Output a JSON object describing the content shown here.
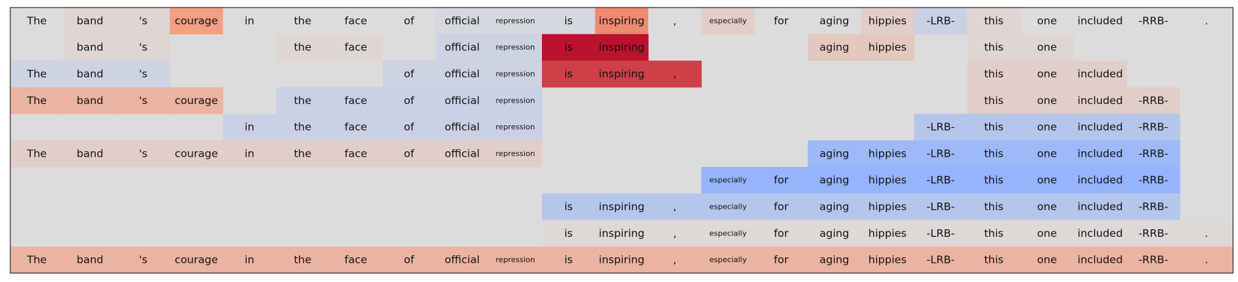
{
  "chart_data": {
    "type": "heatmap",
    "columns": [
      "The",
      "band",
      "'s",
      "courage",
      "in",
      "the",
      "face",
      "of",
      "official",
      "repression",
      "is",
      "inspiring",
      ",",
      "especially",
      "for",
      "aging",
      "hippies",
      "-LRB-",
      "this",
      "one",
      "included",
      "-RRB-",
      "."
    ],
    "small_tokens": [
      "repression",
      "especially"
    ],
    "rows": [
      {
        "cells": [
          {
            "c": 0,
            "v": 0.0
          },
          {
            "c": 1,
            "v": 0.05
          },
          {
            "c": 2,
            "v": 0.05
          },
          {
            "c": 3,
            "v": 0.45
          },
          {
            "c": 4,
            "v": 0.0
          },
          {
            "c": 5,
            "v": 0.0
          },
          {
            "c": 6,
            "v": 0.0
          },
          {
            "c": 7,
            "v": 0.0
          },
          {
            "c": 8,
            "v": -0.05
          },
          {
            "c": 9,
            "v": -0.05
          },
          {
            "c": 10,
            "v": -0.05
          },
          {
            "c": 11,
            "v": 0.55
          },
          {
            "c": 12,
            "v": 0.0
          },
          {
            "c": 13,
            "v": 0.1
          },
          {
            "c": 14,
            "v": 0.0
          },
          {
            "c": 15,
            "v": 0.0
          },
          {
            "c": 16,
            "v": 0.1
          },
          {
            "c": 17,
            "v": -0.12
          },
          {
            "c": 18,
            "v": 0.05
          },
          {
            "c": 19,
            "v": 0.0
          },
          {
            "c": 20,
            "v": 0.0
          },
          {
            "c": 21,
            "v": 0.0
          },
          {
            "c": 22,
            "v": 0.0
          }
        ]
      },
      {
        "cells": [
          {
            "c": 1,
            "v": 0.05
          },
          {
            "c": 2,
            "v": 0.05
          },
          {
            "c": 5,
            "v": 0.05
          },
          {
            "c": 6,
            "v": 0.05
          },
          {
            "c": 8,
            "v": -0.1
          },
          {
            "c": 9,
            "v": -0.1
          },
          {
            "c": 10,
            "v": 0.95
          },
          {
            "c": 11,
            "v": 0.95
          },
          {
            "c": 15,
            "v": 0.15
          },
          {
            "c": 16,
            "v": 0.15
          },
          {
            "c": 18,
            "v": 0.05
          },
          {
            "c": 19,
            "v": 0.05
          }
        ]
      },
      {
        "cells": [
          {
            "c": 0,
            "v": -0.1
          },
          {
            "c": 1,
            "v": -0.1
          },
          {
            "c": 2,
            "v": -0.1
          },
          {
            "c": 7,
            "v": -0.1
          },
          {
            "c": 8,
            "v": -0.1
          },
          {
            "c": 9,
            "v": -0.1
          },
          {
            "c": 10,
            "v": 0.8
          },
          {
            "c": 11,
            "v": 0.8
          },
          {
            "c": 12,
            "v": 0.8
          },
          {
            "c": 18,
            "v": 0.1
          },
          {
            "c": 19,
            "v": 0.1
          },
          {
            "c": 20,
            "v": 0.1
          }
        ]
      },
      {
        "cells": [
          {
            "c": 0,
            "v": 0.3
          },
          {
            "c": 1,
            "v": 0.3
          },
          {
            "c": 2,
            "v": 0.3
          },
          {
            "c": 3,
            "v": 0.3
          },
          {
            "c": 5,
            "v": -0.12
          },
          {
            "c": 6,
            "v": -0.12
          },
          {
            "c": 7,
            "v": -0.12
          },
          {
            "c": 8,
            "v": -0.12
          },
          {
            "c": 9,
            "v": -0.12
          },
          {
            "c": 18,
            "v": 0.1
          },
          {
            "c": 19,
            "v": 0.1
          },
          {
            "c": 20,
            "v": 0.1
          },
          {
            "c": 21,
            "v": 0.1
          }
        ]
      },
      {
        "cells": [
          {
            "c": 4,
            "v": -0.12
          },
          {
            "c": 5,
            "v": -0.12
          },
          {
            "c": 6,
            "v": -0.12
          },
          {
            "c": 7,
            "v": -0.12
          },
          {
            "c": 8,
            "v": -0.12
          },
          {
            "c": 9,
            "v": -0.12
          },
          {
            "c": 17,
            "v": -0.25
          },
          {
            "c": 18,
            "v": -0.25
          },
          {
            "c": 19,
            "v": -0.25
          },
          {
            "c": 20,
            "v": -0.25
          },
          {
            "c": 21,
            "v": -0.25
          }
        ]
      },
      {
        "cells": [
          {
            "c": 0,
            "v": 0.1
          },
          {
            "c": 1,
            "v": 0.1
          },
          {
            "c": 2,
            "v": 0.1
          },
          {
            "c": 3,
            "v": 0.1
          },
          {
            "c": 4,
            "v": 0.1
          },
          {
            "c": 5,
            "v": 0.1
          },
          {
            "c": 6,
            "v": 0.1
          },
          {
            "c": 7,
            "v": 0.1
          },
          {
            "c": 8,
            "v": 0.1
          },
          {
            "c": 9,
            "v": 0.1
          },
          {
            "c": 15,
            "v": -0.4
          },
          {
            "c": 16,
            "v": -0.4
          },
          {
            "c": 17,
            "v": -0.4
          },
          {
            "c": 18,
            "v": -0.4
          },
          {
            "c": 19,
            "v": -0.4
          },
          {
            "c": 20,
            "v": -0.4
          },
          {
            "c": 21,
            "v": -0.4
          }
        ]
      },
      {
        "cells": [
          {
            "c": 13,
            "v": -0.45
          },
          {
            "c": 14,
            "v": -0.45
          },
          {
            "c": 15,
            "v": -0.45
          },
          {
            "c": 16,
            "v": -0.45
          },
          {
            "c": 17,
            "v": -0.45
          },
          {
            "c": 18,
            "v": -0.45
          },
          {
            "c": 19,
            "v": -0.45
          },
          {
            "c": 20,
            "v": -0.45
          },
          {
            "c": 21,
            "v": -0.45
          }
        ]
      },
      {
        "cells": [
          {
            "c": 10,
            "v": -0.25
          },
          {
            "c": 11,
            "v": -0.25
          },
          {
            "c": 12,
            "v": -0.25
          },
          {
            "c": 13,
            "v": -0.25
          },
          {
            "c": 14,
            "v": -0.25
          },
          {
            "c": 15,
            "v": -0.25
          },
          {
            "c": 16,
            "v": -0.25
          },
          {
            "c": 17,
            "v": -0.25
          },
          {
            "c": 18,
            "v": -0.25
          },
          {
            "c": 19,
            "v": -0.25
          },
          {
            "c": 20,
            "v": -0.25
          },
          {
            "c": 21,
            "v": -0.25
          }
        ]
      },
      {
        "cells": [
          {
            "c": 10,
            "v": 0.03
          },
          {
            "c": 11,
            "v": 0.03
          },
          {
            "c": 12,
            "v": 0.03
          },
          {
            "c": 13,
            "v": 0.03
          },
          {
            "c": 14,
            "v": 0.03
          },
          {
            "c": 15,
            "v": 0.03
          },
          {
            "c": 16,
            "v": 0.03
          },
          {
            "c": 17,
            "v": 0.03
          },
          {
            "c": 18,
            "v": 0.03
          },
          {
            "c": 19,
            "v": 0.03
          },
          {
            "c": 20,
            "v": 0.03
          },
          {
            "c": 21,
            "v": 0.03
          },
          {
            "c": 22,
            "v": 0.03
          }
        ]
      },
      {
        "cells": [
          {
            "c": 0,
            "v": 0.3
          },
          {
            "c": 1,
            "v": 0.3
          },
          {
            "c": 2,
            "v": 0.3
          },
          {
            "c": 3,
            "v": 0.3
          },
          {
            "c": 4,
            "v": 0.3
          },
          {
            "c": 5,
            "v": 0.3
          },
          {
            "c": 6,
            "v": 0.3
          },
          {
            "c": 7,
            "v": 0.3
          },
          {
            "c": 8,
            "v": 0.3
          },
          {
            "c": 9,
            "v": 0.3
          },
          {
            "c": 10,
            "v": 0.3
          },
          {
            "c": 11,
            "v": 0.3
          },
          {
            "c": 12,
            "v": 0.3
          },
          {
            "c": 13,
            "v": 0.3
          },
          {
            "c": 14,
            "v": 0.3
          },
          {
            "c": 15,
            "v": 0.3
          },
          {
            "c": 16,
            "v": 0.3
          },
          {
            "c": 17,
            "v": 0.3
          },
          {
            "c": 18,
            "v": 0.3
          },
          {
            "c": 19,
            "v": 0.3
          },
          {
            "c": 20,
            "v": 0.3
          },
          {
            "c": 21,
            "v": 0.3
          },
          {
            "c": 22,
            "v": 0.3
          }
        ]
      }
    ],
    "value_range": [
      -1,
      1
    ],
    "colormap": "coolwarm",
    "neutral_color": "#dddcdc",
    "frame_color": "#000000",
    "grid": false,
    "legend": "none"
  }
}
